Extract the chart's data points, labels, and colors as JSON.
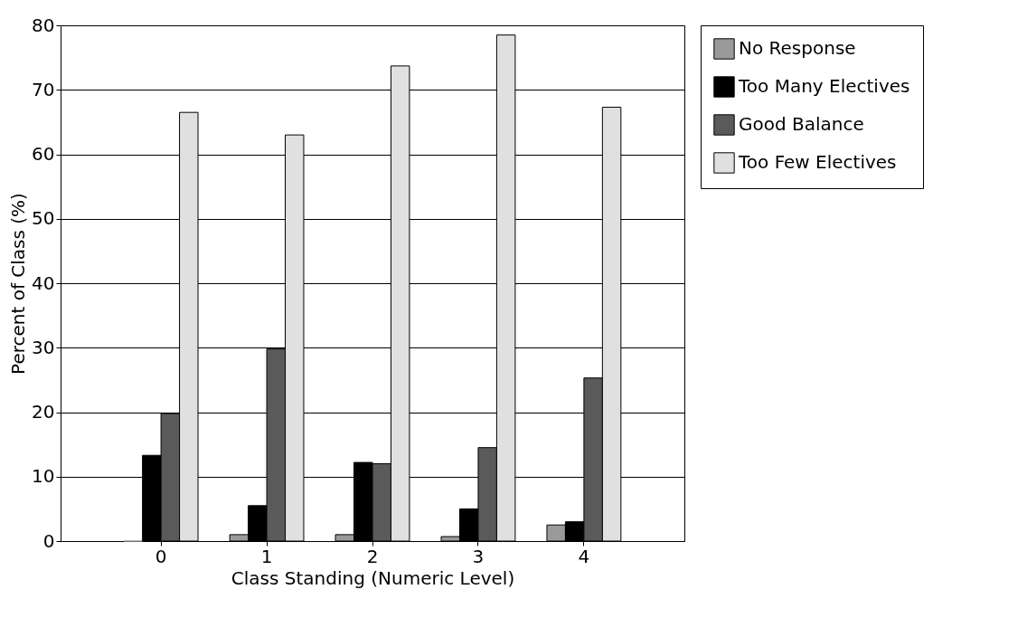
{
  "chart_data": {
    "type": "bar",
    "xlabel": "Class Standing (Numeric Level)",
    "ylabel": "Percent of Class (%)",
    "categories": [
      "0",
      "1",
      "2",
      "3",
      "4"
    ],
    "series": [
      {
        "name": "No Response",
        "color": "#9a9a9a",
        "values": [
          0,
          1,
          1,
          0.7,
          2.5
        ]
      },
      {
        "name": "Too Many Electives",
        "color": "#000000",
        "values": [
          13.3,
          5.5,
          12.2,
          5,
          3
        ]
      },
      {
        "name": "Good Balance",
        "color": "#5a5a5a",
        "values": [
          19.8,
          29.8,
          12,
          14.5,
          25.3
        ]
      },
      {
        "name": "Too Few Electives",
        "color": "#e0e0e0",
        "values": [
          66.5,
          63,
          73.7,
          78.5,
          67.3
        ]
      }
    ],
    "ylim": [
      0,
      80
    ],
    "yticks": [
      0,
      10,
      20,
      30,
      40,
      50,
      60,
      70,
      80
    ],
    "grid": "y",
    "legend": "top right"
  }
}
